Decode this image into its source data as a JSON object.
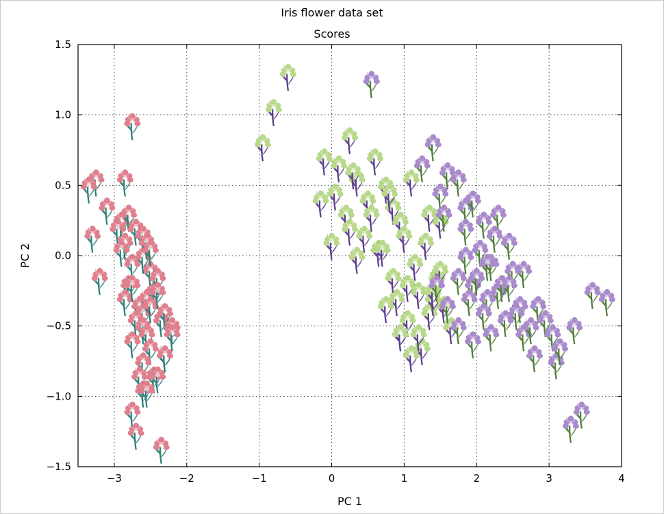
{
  "chart_data": {
    "type": "scatter",
    "title": "Iris flower data set",
    "subtitle": "Scores",
    "xlabel": "PC 1",
    "ylabel": "PC 2",
    "xlim": [
      -3.5,
      4
    ],
    "ylim": [
      -1.5,
      1.5
    ],
    "x_ticks": [
      -3,
      -2,
      -1,
      0,
      1,
      2,
      3,
      4
    ],
    "x_tick_labels": [
      "−3",
      "−2",
      "−1",
      "0",
      "1",
      "2",
      "3",
      "4"
    ],
    "y_ticks": [
      -1.5,
      -1.0,
      -0.5,
      0.0,
      0.5,
      1.0,
      1.5
    ],
    "y_tick_labels": [
      "−1.5",
      "−1.0",
      "−0.5",
      "0.0",
      "0.5",
      "1.0",
      "1.5"
    ],
    "grid": true,
    "grid_style": "dotted",
    "series": [
      {
        "color": "#e0808e",
        "stem_color": "#2f7f78",
        "marker": "pink-iris-icon",
        "x": [
          -2.75,
          -3.25,
          -2.85,
          -3.1,
          -3.35,
          -2.9,
          -3.2,
          -2.95,
          -3.3,
          -2.8,
          -2.85,
          -2.7,
          -2.9,
          -2.6,
          -2.75,
          -2.5,
          -2.8,
          -2.6,
          -2.55,
          -2.85,
          -2.65,
          -2.55,
          -2.75,
          -2.45,
          -2.6,
          -2.5,
          -2.7,
          -2.6,
          -2.4,
          -2.55,
          -2.75,
          -2.5,
          -2.35,
          -2.6,
          -2.3,
          -2.45,
          -2.65,
          -2.5,
          -2.3,
          -2.6,
          -2.2,
          -2.4,
          -2.55,
          -2.3,
          -2.75,
          -2.35,
          -2.2,
          -2.7,
          -2.4
        ],
        "y": [
          0.95,
          0.55,
          0.55,
          0.35,
          0.5,
          0.25,
          -0.15,
          0.2,
          0.15,
          0.3,
          0.1,
          0.2,
          0.05,
          0.15,
          -0.05,
          -0.1,
          -0.2,
          0.0,
          0.1,
          -0.3,
          -0.35,
          -0.3,
          -0.2,
          -0.25,
          -0.4,
          0.05,
          -0.45,
          -0.5,
          -0.15,
          -0.55,
          -0.6,
          -0.65,
          -0.45,
          -0.75,
          -0.7,
          -0.85,
          -0.85,
          -0.35,
          -0.4,
          -0.95,
          -0.5,
          -0.85,
          -0.95,
          -0.7,
          -1.1,
          -1.35,
          -0.55,
          -1.25,
          -0.25
        ]
      },
      {
        "color": "#b8d98a",
        "stem_color": "#5b3d8a",
        "marker": "green-iris-icon",
        "x": [
          -0.6,
          -0.8,
          -0.95,
          -0.1,
          0.25,
          0.1,
          0.35,
          0.05,
          -0.15,
          0.2,
          0.5,
          0.3,
          0.6,
          0.25,
          0.0,
          0.45,
          0.75,
          0.55,
          0.85,
          0.35,
          0.65,
          0.95,
          0.8,
          1.1,
          0.7,
          1.0,
          1.3,
          0.85,
          1.15,
          1.05,
          0.9,
          1.2,
          0.75,
          1.45,
          1.35,
          1.05,
          0.95,
          1.25,
          1.55,
          1.4,
          1.1,
          1.65,
          1.2,
          1.4,
          1.5,
          0.95,
          1.35,
          1.5
        ],
        "y": [
          1.3,
          1.05,
          0.8,
          0.7,
          0.85,
          0.65,
          0.55,
          0.45,
          0.4,
          0.3,
          0.4,
          0.6,
          0.7,
          0.2,
          0.1,
          0.15,
          0.5,
          0.3,
          0.35,
          0.0,
          0.05,
          0.25,
          0.45,
          0.55,
          0.05,
          0.15,
          0.1,
          -0.15,
          -0.05,
          -0.2,
          -0.3,
          -0.25,
          -0.35,
          -0.15,
          -0.4,
          -0.45,
          -0.55,
          -0.65,
          -0.35,
          -0.3,
          -0.7,
          -0.5,
          -0.55,
          -0.25,
          -0.1,
          -0.55,
          0.3,
          0.25
        ]
      },
      {
        "color": "#a98bcc",
        "stem_color": "#4f7d3a",
        "marker": "purple-iris-icon",
        "x": [
          0.55,
          1.4,
          1.25,
          1.6,
          1.75,
          1.5,
          1.85,
          1.55,
          1.95,
          2.1,
          2.3,
          2.25,
          2.45,
          2.05,
          1.85,
          2.2,
          2.5,
          2.65,
          1.75,
          1.95,
          2.3,
          2.15,
          2.6,
          2.85,
          2.95,
          3.05,
          3.35,
          3.6,
          2.55,
          2.8,
          3.1,
          2.4,
          2.65,
          2.35,
          2.1,
          1.9,
          1.75,
          1.6,
          2.45,
          2.15,
          2.0,
          3.3,
          3.45,
          3.8,
          3.15,
          2.75,
          1.95,
          2.2,
          1.45,
          1.85
        ],
        "y": [
          1.25,
          0.8,
          0.65,
          0.6,
          0.55,
          0.45,
          0.35,
          0.3,
          0.4,
          0.25,
          0.3,
          0.15,
          0.1,
          0.05,
          0.0,
          -0.05,
          -0.1,
          -0.1,
          -0.15,
          -0.2,
          -0.25,
          -0.3,
          -0.35,
          -0.35,
          -0.45,
          -0.55,
          -0.5,
          -0.25,
          -0.4,
          -0.7,
          -0.75,
          -0.45,
          -0.55,
          -0.2,
          -0.4,
          -0.3,
          -0.5,
          -0.35,
          -0.2,
          -0.05,
          -0.15,
          -1.2,
          -1.1,
          -0.3,
          -0.65,
          -0.5,
          -0.6,
          -0.55,
          -0.2,
          0.2
        ]
      }
    ]
  }
}
